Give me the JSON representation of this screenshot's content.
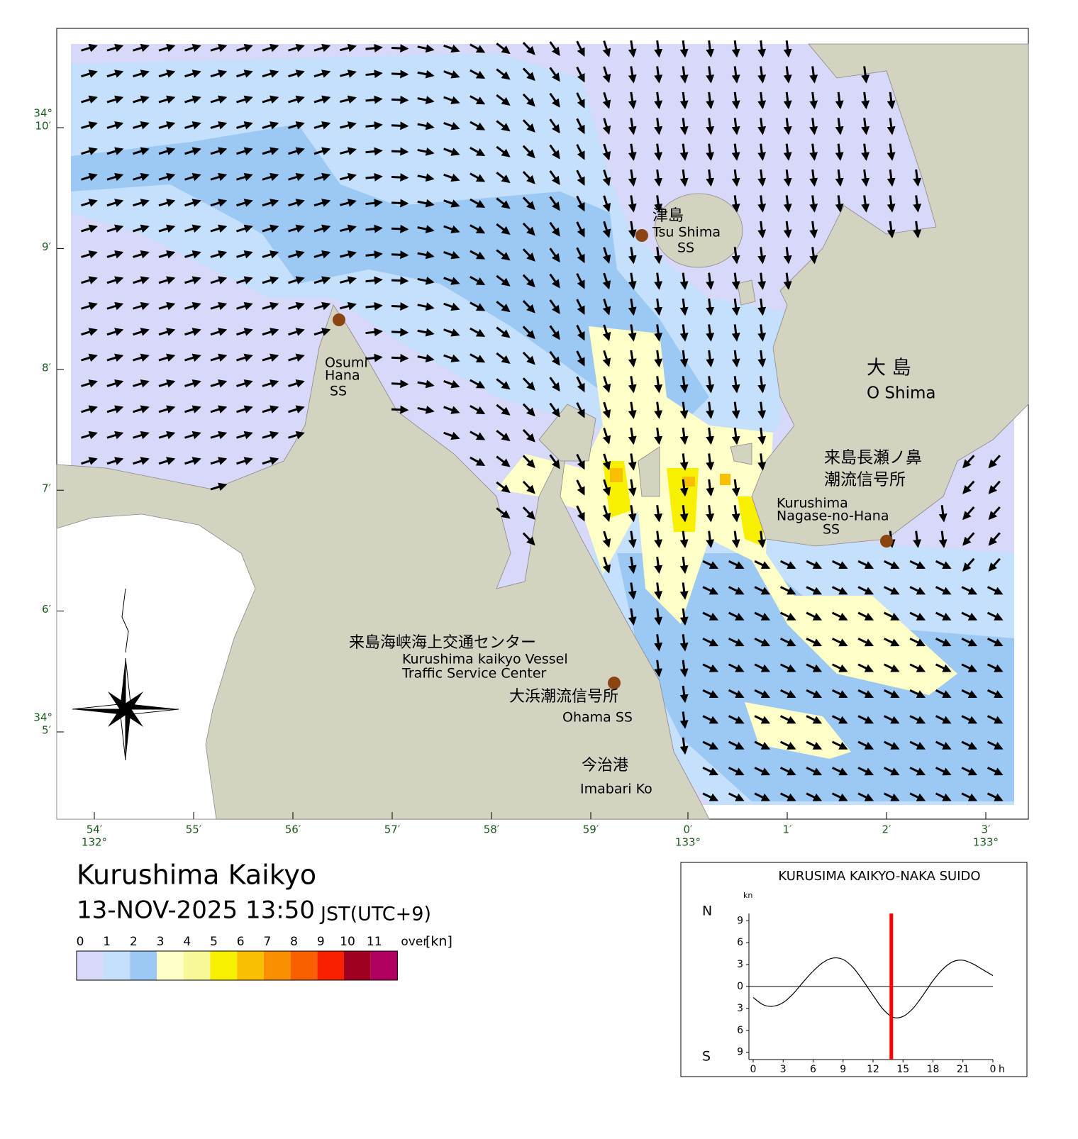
{
  "title": "Kurushima Kaikyo",
  "datetime": "13-NOV-2025 13:50",
  "timezone": "JST(UTC+9)",
  "map": {
    "lon_labels": [
      "54′",
      "55′",
      "56′",
      "57′",
      "58′",
      "59′",
      "0′",
      "1′",
      "2′",
      "3′"
    ],
    "lon_degrees": [
      "132°",
      "133°",
      "133°"
    ],
    "lat_labels": [
      "10′",
      "9′",
      "8′",
      "7′",
      "6′",
      "5′"
    ],
    "lat_degrees": [
      "34°",
      "34°"
    ],
    "places": [
      {
        "lines": [
          "津島",
          "Tsu Shima",
          "SS"
        ]
      },
      {
        "lines": [
          "Osumi",
          "Hana",
          "SS"
        ]
      },
      {
        "lines": [
          "大 島",
          "O Shima"
        ]
      },
      {
        "lines": [
          "来島長瀬ノ鼻",
          "潮流信号所",
          "Kurushima",
          "Nagase-no-Hana",
          "SS"
        ]
      },
      {
        "lines": [
          "来島海峡海上交通センター",
          "Kurushima kaikyo Vessel",
          "Traffic Service Center",
          "大浜潮流信号所",
          "Ohama SS"
        ]
      },
      {
        "lines": [
          "今治港",
          "Imabari Ko"
        ]
      }
    ]
  },
  "legend": {
    "labels": [
      "0",
      "1",
      "2",
      "3",
      "4",
      "5",
      "6",
      "7",
      "8",
      "9",
      "10",
      "11",
      "over"
    ],
    "unit": "[kn]",
    "colors": [
      "#d8d8f8",
      "#c4e0fc",
      "#9cc8f4",
      "#ffffc8",
      "#f8f898",
      "#f8f000",
      "#f8c000",
      "#f89000",
      "#f86000",
      "#f82000",
      "#a00020",
      "#b00060"
    ]
  },
  "inset": {
    "title": "KURUSIMA KAIKYO-NAKA SUIDO",
    "unit": "kn",
    "north": "N",
    "south": "S",
    "hour_unit": "h",
    "xlim": [
      0,
      24
    ],
    "ylim": [
      -10,
      10
    ],
    "xticks": [
      0,
      3,
      6,
      9,
      12,
      15,
      18,
      21,
      {
        "value": 24,
        "label": "0"
      }
    ],
    "yticks": [
      9,
      6,
      3,
      0,
      {
        "value": -3,
        "label": "3"
      },
      {
        "value": -6,
        "label": "6"
      },
      {
        "value": -9,
        "label": "9"
      }
    ],
    "x": [
      0,
      1,
      2,
      3,
      4,
      5,
      6,
      7,
      8,
      9,
      10,
      11,
      12,
      13,
      14,
      15,
      16,
      17,
      18,
      19,
      20,
      21,
      22,
      23,
      24
    ],
    "values": [
      -1.5,
      -2.5,
      -2.7,
      -2.2,
      -1.0,
      0.6,
      2.1,
      3.3,
      3.9,
      3.7,
      2.6,
      0.8,
      -1.2,
      -3.1,
      -4.2,
      -4.1,
      -3.0,
      -1.2,
      0.8,
      2.4,
      3.4,
      3.6,
      3.1,
      2.3,
      1.5
    ],
    "now": 13.83,
    "color": "#000000",
    "now_color": "#ff0000"
  }
}
